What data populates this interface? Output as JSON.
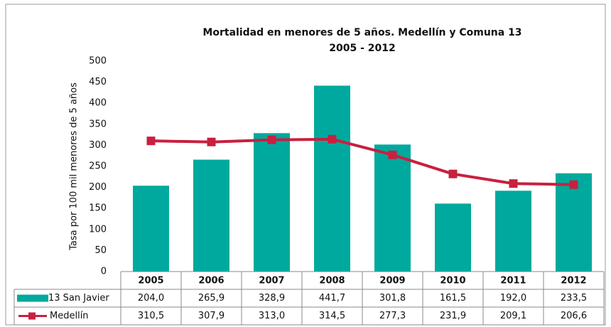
{
  "chart_data": {
    "type": "bar",
    "title": "Mortalidad en menores de 5 años. Medellín y Comuna 13",
    "subtitle": "2005 - 2012",
    "y_label": "Tasa por 100 mil menores de 5 años",
    "categories": [
      "2005",
      "2006",
      "2007",
      "2008",
      "2009",
      "2010",
      "2011",
      "2012"
    ],
    "series": [
      {
        "name": "13 San Javier",
        "type": "bar",
        "color": "#00a99d",
        "values": [
          204.0,
          265.9,
          328.9,
          441.7,
          301.8,
          161.5,
          192.0,
          233.5
        ],
        "value_labels": [
          "204,0",
          "265,9",
          "328,9",
          "441,7",
          "301,8",
          "161,5",
          "192,0",
          "233,5"
        ]
      },
      {
        "name": "Medellín",
        "type": "line",
        "color": "#c8203f",
        "values": [
          310.5,
          307.9,
          313.0,
          314.5,
          277.3,
          231.9,
          209.1,
          206.6
        ],
        "value_labels": [
          "310,5",
          "307,9",
          "313,0",
          "314,5",
          "277,3",
          "231,9",
          "209,1",
          "206,6"
        ]
      }
    ],
    "ylim": [
      0,
      500
    ],
    "yticks": [
      0,
      50,
      100,
      150,
      200,
      250,
      300,
      350,
      400,
      450,
      500
    ],
    "grid": false
  }
}
